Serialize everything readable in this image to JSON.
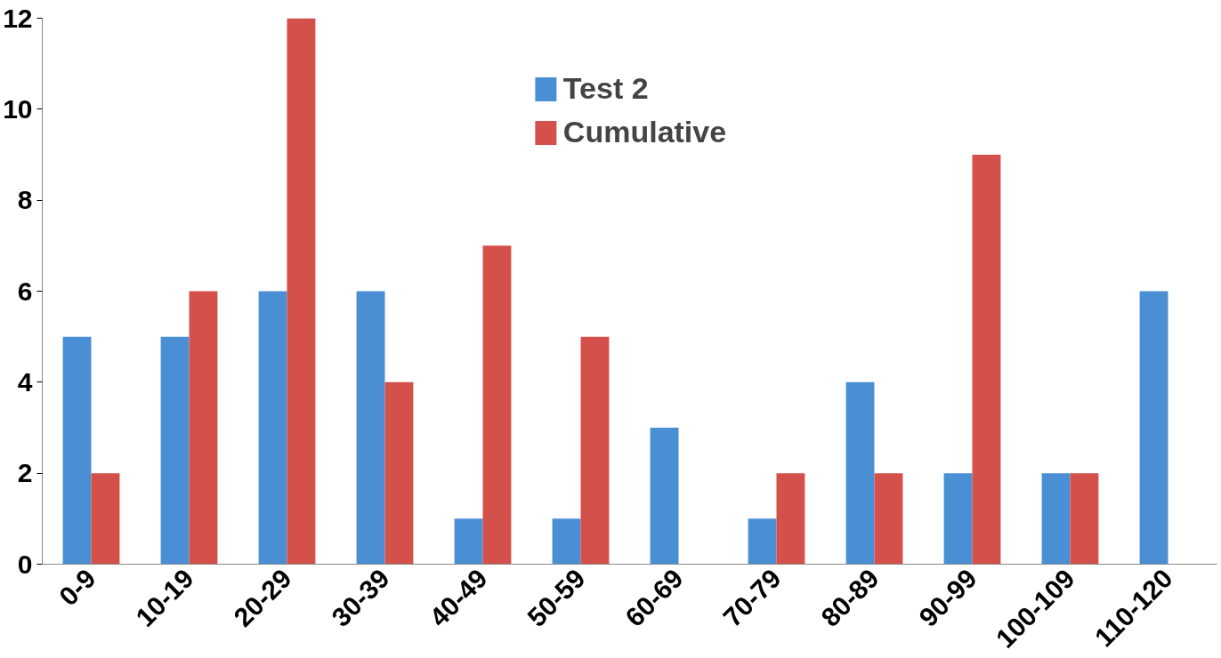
{
  "chart_data": {
    "type": "bar",
    "categories": [
      "0-9",
      "10-19",
      "20-29",
      "30-39",
      "40-49",
      "50-59",
      "60-69",
      "70-79",
      "80-89",
      "90-99",
      "100-109",
      "110-120"
    ],
    "series": [
      {
        "name": "Test 2",
        "color": "#4a8fd4",
        "values": [
          5,
          5,
          6,
          6,
          1,
          1,
          3,
          1,
          4,
          2,
          2,
          6
        ]
      },
      {
        "name": "Cumulative",
        "color": "#d4504a",
        "values": [
          2,
          6,
          12,
          4,
          7,
          5,
          0,
          2,
          2,
          9,
          2,
          0
        ]
      }
    ],
    "ylim": [
      0,
      12
    ],
    "yticks": [
      0,
      2,
      4,
      6,
      8,
      10,
      12
    ],
    "grid": false,
    "legend": "top"
  }
}
